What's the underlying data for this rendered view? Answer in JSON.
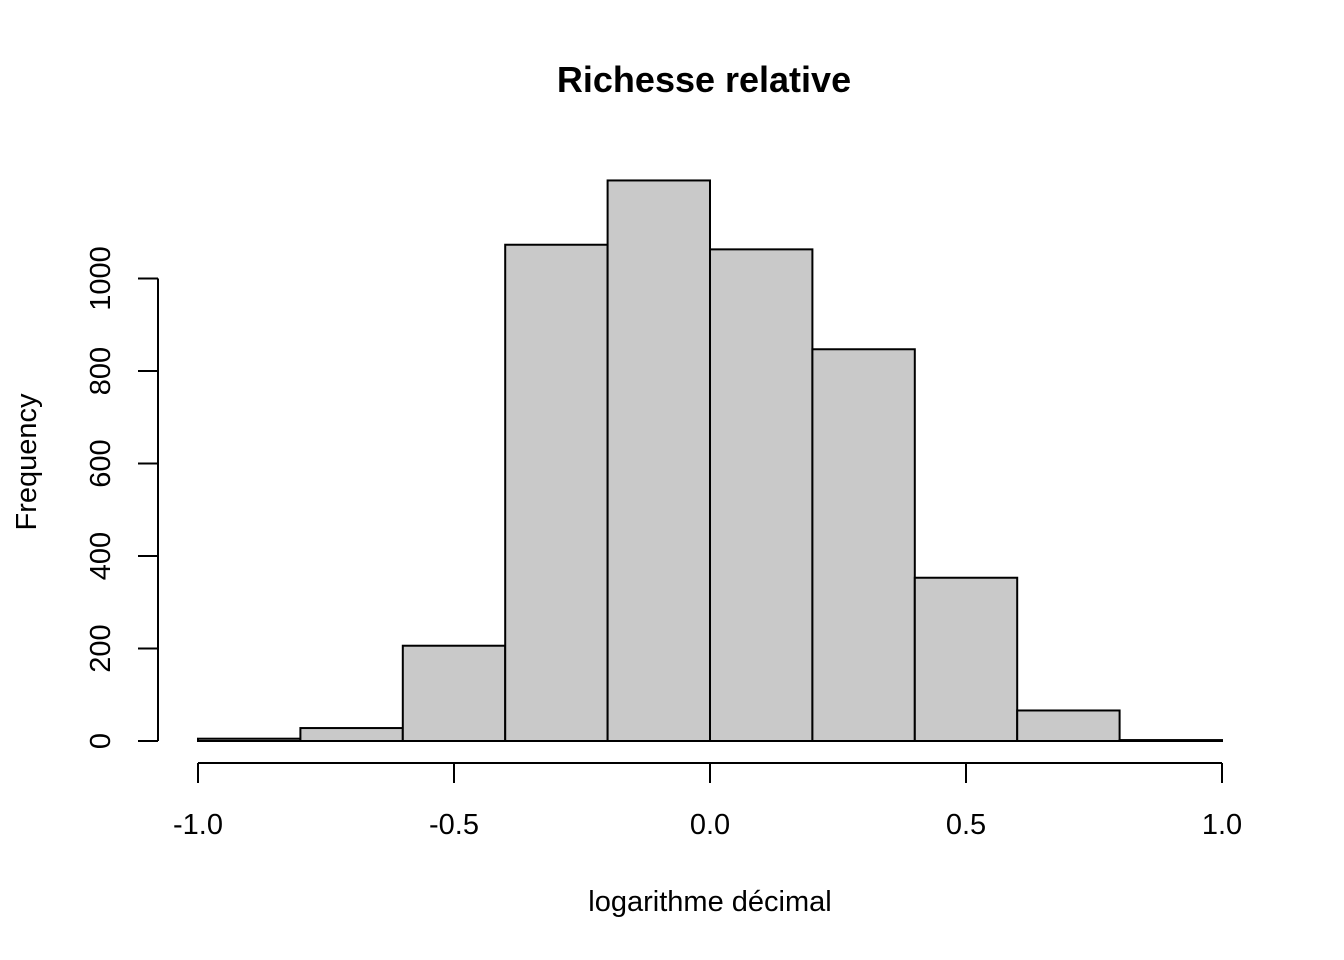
{
  "chart_data": {
    "type": "bar",
    "subtype": "histogram",
    "title": "Richesse relative",
    "xlabel": "logarithme décimal",
    "ylabel": "Frequency",
    "bins": [
      {
        "x0": -1.0,
        "x1": -0.8,
        "count": 5
      },
      {
        "x0": -0.8,
        "x1": -0.6,
        "count": 28
      },
      {
        "x0": -0.6,
        "x1": -0.4,
        "count": 206
      },
      {
        "x0": -0.4,
        "x1": -0.2,
        "count": 1073
      },
      {
        "x0": -0.2,
        "x1": 0.0,
        "count": 1212
      },
      {
        "x0": 0.0,
        "x1": 0.2,
        "count": 1063
      },
      {
        "x0": 0.2,
        "x1": 0.4,
        "count": 847
      },
      {
        "x0": 0.4,
        "x1": 0.6,
        "count": 353
      },
      {
        "x0": 0.6,
        "x1": 0.8,
        "count": 66
      },
      {
        "x0": 0.8,
        "x1": 1.0,
        "count": 2
      }
    ],
    "xlim": [
      -1.0,
      1.0
    ],
    "ylim": [
      0,
      1200
    ],
    "x_ticks": [
      -1.0,
      -0.5,
      0.0,
      0.5,
      1.0
    ],
    "x_tick_labels": [
      "-1.0",
      "-0.5",
      "0.0",
      "0.5",
      "1.0"
    ],
    "y_ticks": [
      0,
      200,
      400,
      600,
      800,
      1000
    ],
    "y_tick_labels": [
      "0",
      "200",
      "400",
      "600",
      "800",
      "1000"
    ],
    "grid": false,
    "legend": "none",
    "colors": {
      "bar_fill": "#c9c9c9",
      "bar_stroke": "#000000",
      "axis": "#000000",
      "background": "#ffffff"
    }
  }
}
